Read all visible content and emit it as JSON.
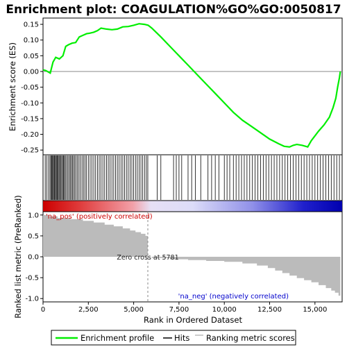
{
  "chart_data": [
    {
      "panel": "enrichment",
      "type": "line",
      "title": "Enrichment plot: COAGULATION%GO%GO:0050817",
      "xlabel": "",
      "ylabel": "Enrichment score (ES)",
      "xlim": [
        0,
        16500
      ],
      "ylim": [
        -0.265,
        0.17
      ],
      "y_ticks": [
        0.15,
        0.1,
        0.05,
        0.0,
        -0.05,
        -0.1,
        -0.15,
        -0.2,
        -0.25
      ],
      "y_tick_labels": [
        "0.15",
        "0.10",
        "0.05",
        "0.00",
        "-0.05",
        "-0.10",
        "-0.15",
        "-0.20",
        "-0.25"
      ],
      "series": [
        {
          "name": "Enrichment profile",
          "color": "#00ee00",
          "x": [
            0,
            150,
            400,
            550,
            700,
            900,
            1100,
            1250,
            1400,
            1600,
            1800,
            2000,
            2200,
            2400,
            2600,
            2800,
            3000,
            3200,
            3500,
            3800,
            4100,
            4400,
            4700,
            5000,
            5300,
            5600,
            5800,
            6000,
            6500,
            7000,
            7500,
            8000,
            8500,
            9000,
            9500,
            10000,
            10500,
            11000,
            11500,
            12000,
            12500,
            13000,
            13300,
            13600,
            13800,
            14000,
            14300,
            14600,
            14800,
            15000,
            15200,
            15500,
            15800,
            16000,
            16150,
            16250,
            16350,
            16400
          ],
          "y": [
            0.005,
            0.003,
            -0.005,
            0.03,
            0.045,
            0.04,
            0.05,
            0.08,
            0.085,
            0.09,
            0.092,
            0.11,
            0.115,
            0.12,
            0.122,
            0.125,
            0.13,
            0.138,
            0.135,
            0.133,
            0.135,
            0.142,
            0.143,
            0.147,
            0.152,
            0.15,
            0.147,
            0.138,
            0.11,
            0.08,
            0.05,
            0.02,
            -0.01,
            -0.04,
            -0.07,
            -0.1,
            -0.13,
            -0.155,
            -0.175,
            -0.195,
            -0.215,
            -0.23,
            -0.238,
            -0.24,
            -0.235,
            -0.232,
            -0.235,
            -0.24,
            -0.22,
            -0.205,
            -0.19,
            -0.17,
            -0.145,
            -0.115,
            -0.085,
            -0.05,
            -0.02,
            0.0
          ]
        }
      ]
    },
    {
      "panel": "hits",
      "type": "scatter",
      "legend_name": "Hits",
      "hit_ranks": [
        120,
        200,
        300,
        380,
        430,
        480,
        520,
        570,
        610,
        650,
        690,
        740,
        780,
        830,
        880,
        920,
        980,
        1030,
        1080,
        1130,
        1180,
        1230,
        1300,
        1370,
        1440,
        1500,
        1560,
        1620,
        1680,
        1750,
        1820,
        1900,
        1980,
        2060,
        2150,
        2230,
        2320,
        2400,
        2500,
        2600,
        2700,
        2800,
        2900,
        3000,
        3100,
        3200,
        3300,
        3400,
        3500,
        3600,
        3700,
        3800,
        3900,
        4000,
        4100,
        4200,
        4300,
        4400,
        4500,
        4600,
        4700,
        4800,
        4900,
        5000,
        5100,
        5200,
        5300,
        5400,
        5500,
        5600,
        5700,
        5780,
        6300,
        6500,
        7200,
        7350,
        7500,
        7650,
        8000,
        8200,
        8400,
        8700,
        9100,
        9300,
        9500,
        9700,
        10000,
        10150,
        10300,
        10500,
        10650,
        10800,
        10950,
        11100,
        11250,
        11400,
        11550,
        11700,
        11850,
        12000,
        12150,
        12300,
        12450,
        12600,
        12750,
        12900,
        13050,
        13200,
        13350,
        13500,
        13650,
        13800,
        13950,
        14100,
        14250,
        14400,
        14550,
        14700,
        14850,
        15000,
        15150,
        15300,
        15450,
        15600,
        15750,
        15900,
        16050,
        16200,
        16350
      ]
    },
    {
      "panel": "ranked_metric",
      "type": "area",
      "xlabel": "Rank in Ordered Dataset",
      "ylabel": "Ranked list metric (PreRanked)",
      "xlim": [
        0,
        16500
      ],
      "ylim": [
        -1.08,
        1.08
      ],
      "x_ticks": [
        0,
        2500,
        5000,
        7500,
        10000,
        12500,
        15000
      ],
      "x_tick_labels": [
        "0",
        "2,500",
        "5,000",
        "7,500",
        "10,000",
        "12,500",
        "15,000"
      ],
      "y_ticks": [
        1.0,
        0.5,
        0.0,
        -0.5,
        -1.0
      ],
      "y_tick_labels": [
        "1.0",
        "0.5",
        "0.0",
        "-0.5",
        "-1.0"
      ],
      "x": [
        0,
        300,
        800,
        1500,
        2200,
        2800,
        3400,
        3900,
        4400,
        4800,
        5100,
        5400,
        5650,
        5781,
        6000,
        7000,
        8000,
        9000,
        10000,
        11000,
        11800,
        12400,
        12800,
        13200,
        13600,
        14000,
        14400,
        14800,
        15200,
        15600,
        15900,
        16100,
        16300,
        16400
      ],
      "values": [
        1.0,
        0.97,
        0.93,
        0.9,
        0.86,
        0.82,
        0.77,
        0.73,
        0.68,
        0.63,
        0.59,
        0.55,
        0.5,
        0.0,
        -0.03,
        -0.06,
        -0.08,
        -0.1,
        -0.12,
        -0.16,
        -0.21,
        -0.27,
        -0.33,
        -0.39,
        -0.45,
        -0.51,
        -0.56,
        -0.61,
        -0.68,
        -0.75,
        -0.81,
        -0.86,
        -0.93,
        -0.99
      ],
      "zero_cross_rank": 5781,
      "annotations": {
        "pos": "'na_pos' (positively correlated)",
        "zero": "Zero cross at 5781",
        "neg": "'na_neg' (negatively correlated)"
      }
    }
  ],
  "legend": {
    "items": [
      {
        "label": "Enrichment profile",
        "color": "#00ee00"
      },
      {
        "label": "Hits",
        "color": "#000000"
      },
      {
        "label": "Ranking metric scores",
        "color": "#bbbbbb"
      }
    ]
  },
  "colors": {
    "profile": "#00ee00",
    "hit": "#000000",
    "metric_fill": "#bbbbbb",
    "heat_pos": "#cc0000",
    "heat_neg": "#0000cc",
    "zero_line": "#888888"
  }
}
